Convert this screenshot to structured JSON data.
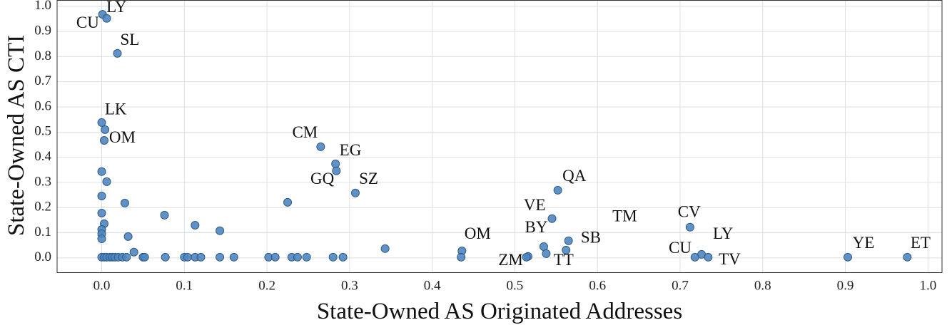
{
  "chart_data": {
    "type": "scatter",
    "xlabel": "State-Owned AS Originated Addresses",
    "ylabel": "State-Owned AS CTI",
    "color": "#4f86c0",
    "grid": true,
    "xlim": [
      -0.054,
      1.017
    ],
    "ylim": [
      -0.057,
      1.025
    ],
    "xticks": [
      {
        "value": 0,
        "label": "0.0"
      },
      {
        "value": 0.1,
        "label": "0.1"
      },
      {
        "value": 0.2,
        "label": "0.2"
      },
      {
        "value": 0.3,
        "label": "0.3"
      },
      {
        "value": 0.4,
        "label": "0.4"
      },
      {
        "value": 0.5,
        "label": "0.5"
      },
      {
        "value": 0.6,
        "label": "0.6"
      },
      {
        "value": 0.7,
        "label": "0.7"
      },
      {
        "value": 0.8,
        "label": "0.8"
      },
      {
        "value": 0.9,
        "label": "0.9"
      },
      {
        "value": 1,
        "label": "1.0"
      }
    ],
    "yticks": [
      {
        "value": 0,
        "label": "0.0"
      },
      {
        "value": 0.1,
        "label": "0.1"
      },
      {
        "value": 0.2,
        "label": "0.2"
      },
      {
        "value": 0.3,
        "label": "0.3"
      },
      {
        "value": 0.4,
        "label": "0.4"
      },
      {
        "value": 0.5,
        "label": "0.5"
      },
      {
        "value": 0.6,
        "label": "0.6"
      },
      {
        "value": 0.7,
        "label": "0.7"
      },
      {
        "value": 0.8,
        "label": "0.8"
      },
      {
        "value": 0.9,
        "label": "0.9"
      },
      {
        "value": 1,
        "label": "1.0"
      }
    ],
    "x": [
      0.001,
      0.006,
      0.019,
      0,
      0.004,
      0.003,
      0,
      0.006,
      0,
      0,
      0.003,
      0,
      0,
      0,
      0.028,
      0.032,
      0.039,
      0.076,
      0.113,
      0.143,
      0.225,
      0.265,
      0.283,
      0.284,
      0.307,
      0.343,
      0.436,
      0.435,
      0.516,
      0.514,
      0.535,
      0.538,
      0.545,
      0.552,
      0.565,
      0.562,
      0.712,
      0.718,
      0.726,
      0.734,
      0.903,
      0.975,
      0,
      0.003,
      0.006,
      0.01,
      0.013,
      0.016,
      0.02,
      0.025,
      0.03,
      0.05,
      0.052,
      0.077,
      0.1,
      0.104,
      0.113,
      0.12,
      0.143,
      0.16,
      0.202,
      0.21,
      0.23,
      0.237,
      0.248,
      0.28,
      0.292
    ],
    "values": [
      0.968,
      0.952,
      0.813,
      0.538,
      0.51,
      0.467,
      0.343,
      0.303,
      0.246,
      0.178,
      0.136,
      0.113,
      0.096,
      0.076,
      0.218,
      0.085,
      0.023,
      0.17,
      0.13,
      0.108,
      0.221,
      0.442,
      0.374,
      0.346,
      0.258,
      0.037,
      0.028,
      0.003,
      0.006,
      0.003,
      0.045,
      0.017,
      0.156,
      0.269,
      0.068,
      0.031,
      0.122,
      0.003,
      0.014,
      0.003,
      0.003,
      0.003,
      0.003,
      0.003,
      0.003,
      0.003,
      0.003,
      0.003,
      0.003,
      0.003,
      0.003,
      0.003,
      0.003,
      0.003,
      0.003,
      0.003,
      0.003,
      0.003,
      0.003,
      0.003,
      0.003,
      0.003,
      0.003,
      0.003,
      0.003,
      0.003,
      0.003
    ],
    "annotations": [
      {
        "text": "CU",
        "x": -0.017,
        "y": 0.929
      },
      {
        "text": "LY",
        "x": 0.018,
        "y": 0.992
      },
      {
        "text": "SL",
        "x": 0.034,
        "y": 0.861
      },
      {
        "text": "LK",
        "x": 0.017,
        "y": 0.586
      },
      {
        "text": "OM",
        "x": 0.025,
        "y": 0.473
      },
      {
        "text": "CM",
        "x": 0.246,
        "y": 0.493
      },
      {
        "text": "EG",
        "x": 0.301,
        "y": 0.422
      },
      {
        "text": "GQ",
        "x": 0.267,
        "y": 0.309
      },
      {
        "text": "SZ",
        "x": 0.323,
        "y": 0.309
      },
      {
        "text": "QA",
        "x": 0.572,
        "y": 0.32
      },
      {
        "text": "VE",
        "x": 0.524,
        "y": 0.204
      },
      {
        "text": "TM",
        "x": 0.633,
        "y": 0.161
      },
      {
        "text": "BY",
        "x": 0.526,
        "y": 0.116
      },
      {
        "text": "SB",
        "x": 0.592,
        "y": 0.076
      },
      {
        "text": "OM",
        "x": 0.455,
        "y": 0.091
      },
      {
        "text": "ZM",
        "x": 0.495,
        "y": -0.014
      },
      {
        "text": "TT",
        "x": 0.559,
        "y": -0.014
      },
      {
        "text": "CV",
        "x": 0.711,
        "y": 0.178
      },
      {
        "text": "LY",
        "x": 0.752,
        "y": 0.091
      },
      {
        "text": "CU",
        "x": 0.7,
        "y": 0.034
      },
      {
        "text": "TV",
        "x": 0.76,
        "y": -0.011
      },
      {
        "text": "YE",
        "x": 0.922,
        "y": 0.054
      },
      {
        "text": "ET",
        "x": 0.991,
        "y": 0.054
      }
    ]
  }
}
